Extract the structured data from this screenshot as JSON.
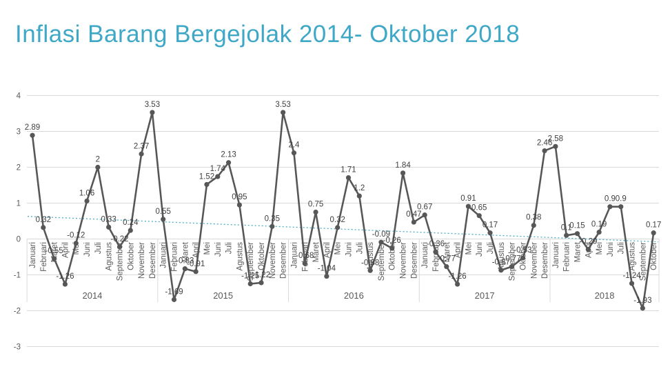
{
  "header": {
    "title": "Inflasi Barang Bergejolak 2014- Oktober 2018"
  },
  "chart_data": {
    "type": "line",
    "title": "Inflasi Barang Bergejolak 2014- Oktober 2018",
    "xlabel": "",
    "ylabel": "",
    "ylim": [
      -3,
      4
    ],
    "yticks": [
      "4",
      "3",
      "2",
      "1",
      "0",
      "-1",
      "-2",
      "-3"
    ],
    "grid": "horizontal",
    "legend": "none",
    "marker": "circle",
    "years": [
      {
        "label": "2014",
        "months": [
          "Januari",
          "Februari",
          "Maret",
          "April",
          "Mei",
          "Juni",
          "Juli",
          "Agustus",
          "September",
          "Oktober",
          "November",
          "Desember"
        ],
        "values": [
          2.89,
          0.32,
          -0.55,
          -1.26,
          -0.12,
          1.06,
          2,
          0.33,
          -0.22,
          0.24,
          2.37,
          3.53
        ],
        "value_labels": [
          "2.89",
          "0.32",
          "-0.55",
          "-1.26",
          "-0.12",
          "1.06",
          "2",
          "0.33",
          "-0.22",
          "0.24",
          "2.37",
          "3.53"
        ]
      },
      {
        "label": "2015",
        "months": [
          "Januari",
          "Februari",
          "Maret",
          "April",
          "Mei",
          "Juni",
          "Juli",
          "Agustus",
          "September",
          "Oktober",
          "November",
          "Desember"
        ],
        "values": [
          0.55,
          -1.69,
          -0.83,
          -0.91,
          1.52,
          1.74,
          2.13,
          0.95,
          -1.25,
          -1.22,
          0.35,
          3.53
        ],
        "value_labels": [
          "0.55",
          "-1.69",
          "-0.83",
          "-0.91",
          "1.52",
          "1.74",
          "2.13",
          "0.95",
          "-1.25",
          "-1.22",
          "0.35",
          "3.53"
        ]
      },
      {
        "label": "2016",
        "months": [
          "Januari",
          "Februari",
          "Maret",
          "April",
          "Mei",
          "Juni",
          "Juli",
          "Agustus",
          "September",
          "Oktober",
          "November",
          "Desember"
        ],
        "values": [
          2.4,
          -0.68,
          0.75,
          -1.04,
          0.32,
          1.71,
          1.2,
          -0.88,
          -0.09,
          -0.26,
          1.84,
          0.47
        ],
        "value_labels": [
          "2.4",
          "-0.68",
          "0.75",
          "-1.04",
          "0.32",
          "1.71",
          "1.2",
          "-0.88",
          "-0.09",
          "-0.26",
          "1.84",
          "0.47"
        ]
      },
      {
        "label": "2017",
        "months": [
          "Januari",
          "Februari",
          "Maret",
          "April",
          "Mei",
          "Juni",
          "Juli",
          "Agustus",
          "September",
          "Oktober",
          "November",
          "Desember"
        ],
        "values": [
          0.67,
          -0.36,
          -0.77,
          -1.26,
          0.91,
          0.65,
          0.17,
          -0.87,
          -0.77,
          -0.53,
          0.38,
          2.46
        ],
        "value_labels": [
          "0.67",
          "-0.36",
          "-0.77",
          "-1.26",
          "0.91",
          "0.65",
          "0.17",
          "-0.87",
          "-0.77",
          "-0.53",
          "0.38",
          "2.46"
        ]
      },
      {
        "label": "2018",
        "months": [
          "Januari",
          "Februari",
          "Maret",
          "April",
          "Mei",
          "Juni",
          "Juli",
          "Agustus",
          "September",
          "Oktober"
        ],
        "values": [
          2.58,
          0.1,
          0.15,
          -0.29,
          0.19,
          0.9,
          0.9,
          -1.24,
          -1.93,
          0.17
        ],
        "value_labels": [
          "2.58",
          "0.1",
          "0.15",
          "-0.29",
          "0.19",
          "0.9",
          "0.9",
          "-1.24",
          "-1.93",
          "0.17"
        ]
      }
    ],
    "trendline": {
      "style": "dotted",
      "start_value": 0.63,
      "end_value": -0.08
    },
    "colors": {
      "title": "#3FA8C6",
      "series_line": "#575757",
      "marker": "#575757",
      "data_label": "#404040",
      "axis_label": "#595959",
      "gridline": "#D9D9D9",
      "trendline": "#4BACC6",
      "background": "#FFFFFF"
    }
  }
}
